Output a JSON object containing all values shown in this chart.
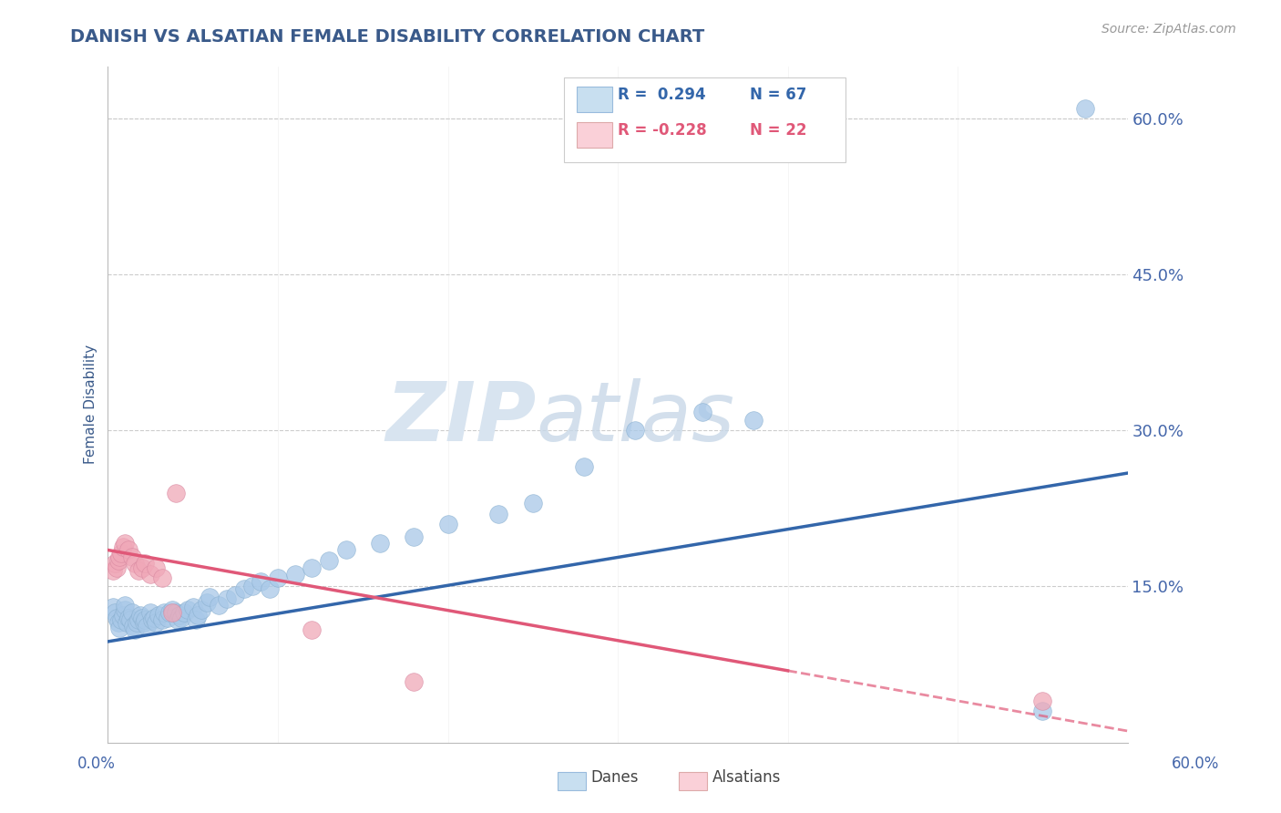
{
  "title": "DANISH VS ALSATIAN FEMALE DISABILITY CORRELATION CHART",
  "source": "Source: ZipAtlas.com",
  "ylabel": "Female Disability",
  "right_yticks": [
    "60.0%",
    "45.0%",
    "30.0%",
    "15.0%"
  ],
  "right_ytick_vals": [
    0.6,
    0.45,
    0.3,
    0.15
  ],
  "legend_r_danish": "R =  0.294",
  "legend_n_danish": "N = 67",
  "legend_r_alsatian": "R = -0.228",
  "legend_n_alsatian": "N = 22",
  "blue_dot_color": "#a8c8e8",
  "pink_dot_color": "#f0a8b8",
  "blue_line_color": "#3366aa",
  "pink_line_color": "#e05878",
  "blue_legend_fill": "#c8dff0",
  "pink_legend_fill": "#fad0d8",
  "title_color": "#3a5a8a",
  "axis_label_color": "#3a5a8a",
  "tick_color": "#4466aa",
  "watermark_zip": "ZIP",
  "watermark_atlas": "atlas",
  "danes_x": [
    0.003,
    0.004,
    0.005,
    0.006,
    0.007,
    0.008,
    0.009,
    0.01,
    0.01,
    0.011,
    0.012,
    0.013,
    0.014,
    0.015,
    0.016,
    0.017,
    0.018,
    0.019,
    0.02,
    0.021,
    0.022,
    0.023,
    0.025,
    0.026,
    0.027,
    0.028,
    0.03,
    0.032,
    0.033,
    0.035,
    0.036,
    0.038,
    0.04,
    0.041,
    0.042,
    0.043,
    0.045,
    0.047,
    0.05,
    0.052,
    0.053,
    0.055,
    0.058,
    0.06,
    0.065,
    0.07,
    0.075,
    0.08,
    0.085,
    0.09,
    0.095,
    0.1,
    0.11,
    0.12,
    0.13,
    0.14,
    0.16,
    0.18,
    0.2,
    0.23,
    0.25,
    0.28,
    0.31,
    0.35,
    0.38,
    0.55,
    0.575
  ],
  "danes_y": [
    0.13,
    0.125,
    0.12,
    0.115,
    0.11,
    0.118,
    0.122,
    0.128,
    0.132,
    0.115,
    0.12,
    0.118,
    0.125,
    0.112,
    0.108,
    0.115,
    0.118,
    0.122,
    0.12,
    0.115,
    0.118,
    0.112,
    0.125,
    0.118,
    0.12,
    0.115,
    0.122,
    0.118,
    0.125,
    0.12,
    0.125,
    0.128,
    0.125,
    0.118,
    0.122,
    0.12,
    0.125,
    0.128,
    0.13,
    0.118,
    0.122,
    0.128,
    0.135,
    0.14,
    0.132,
    0.138,
    0.142,
    0.148,
    0.15,
    0.155,
    0.148,
    0.158,
    0.162,
    0.168,
    0.175,
    0.185,
    0.192,
    0.198,
    0.21,
    0.22,
    0.23,
    0.265,
    0.3,
    0.318,
    0.31,
    0.03,
    0.61
  ],
  "alsatians_x": [
    0.003,
    0.004,
    0.005,
    0.006,
    0.007,
    0.008,
    0.009,
    0.01,
    0.012,
    0.014,
    0.016,
    0.018,
    0.02,
    0.022,
    0.025,
    0.028,
    0.032,
    0.038,
    0.04,
    0.12,
    0.18,
    0.55
  ],
  "alsatians_y": [
    0.165,
    0.172,
    0.168,
    0.175,
    0.178,
    0.182,
    0.188,
    0.192,
    0.185,
    0.178,
    0.172,
    0.165,
    0.168,
    0.172,
    0.162,
    0.168,
    0.158,
    0.125,
    0.24,
    0.108,
    0.058,
    0.04
  ],
  "xmin": 0.0,
  "xmax": 0.6,
  "ymin": 0.0,
  "ymax": 0.65,
  "background_color": "#ffffff",
  "grid_color": "#cccccc",
  "blue_line_intercept": 0.097,
  "blue_line_slope": 0.27,
  "pink_line_intercept": 0.185,
  "pink_line_slope": -0.29
}
